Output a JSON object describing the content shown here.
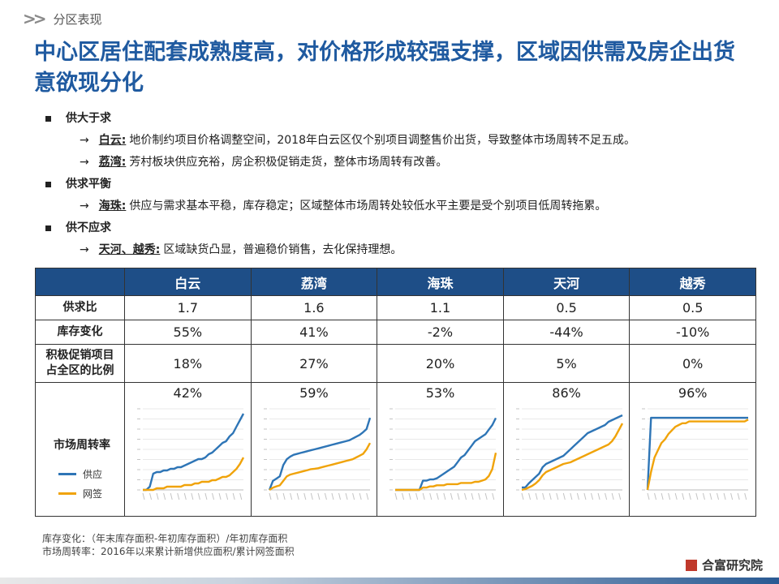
{
  "section": {
    "label": "分区表现"
  },
  "title": "中心区居住配套成熟度高，对价格形成较强支撑，区域因供需及房企出货意欲现分化",
  "bullets": [
    {
      "heading": "供大于求",
      "subs": [
        {
          "key": "白云:",
          "text": "地价制约项目价格调整空间，2018年白云区仅个别项目调整售价出货，导致整体市场周转不足五成。"
        },
        {
          "key": "荔湾:",
          "text": "芳村板块供应充裕，房企积极促销走货，整体市场周转有改善。"
        }
      ]
    },
    {
      "heading": "供求平衡",
      "subs": [
        {
          "key": "海珠:",
          "text": "供应与需求基本平稳，库存稳定；区域整体市场周转处较低水平主要是受个别项目低周转拖累。"
        }
      ]
    },
    {
      "heading": "供不应求",
      "subs": [
        {
          "key": "天河、越秀:",
          "text": "区域缺货凸显，普遍稳价销售，去化保持理想。"
        }
      ]
    }
  ],
  "table": {
    "columns": [
      "白云",
      "荔湾",
      "海珠",
      "天河",
      "越秀"
    ],
    "rows": [
      {
        "label": "供求比",
        "values": [
          "1.7",
          "1.6",
          "1.1",
          "0.5",
          "0.5"
        ]
      },
      {
        "label": "库存变化",
        "values": [
          "55%",
          "41%",
          "-2%",
          "-44%",
          "-10%"
        ]
      },
      {
        "label": "积极促销项目占全区的比例",
        "values": [
          "18%",
          "27%",
          "20%",
          "5%",
          "0%"
        ]
      }
    ],
    "turnover_label": "市场周转率",
    "turnover_values": [
      "42%",
      "59%",
      "53%",
      "86%",
      "96%"
    ],
    "legend": [
      {
        "name": "供应",
        "color": "#2e75b6"
      },
      {
        "name": "网签",
        "color": "#f0a30a"
      }
    ]
  },
  "chart_data": [
    {
      "type": "line",
      "district": "白云",
      "x_index": [
        0,
        1,
        2,
        3,
        4,
        5,
        6,
        7,
        8,
        9,
        10,
        11,
        12,
        13,
        14,
        15,
        16,
        17,
        18,
        19,
        20,
        21,
        22,
        23,
        24,
        25,
        26,
        27,
        28,
        29
      ],
      "series": [
        {
          "name": "供应",
          "values": [
            0,
            0,
            2,
            10,
            11,
            11,
            12,
            12,
            13,
            13,
            14,
            14,
            15,
            16,
            17,
            18,
            19,
            19,
            20,
            22,
            23,
            25,
            27,
            29,
            30,
            33,
            35,
            39,
            43,
            47
          ]
        },
        {
          "name": "网签",
          "values": [
            0,
            0,
            0,
            0,
            1,
            1,
            1,
            2,
            2,
            2,
            2,
            2,
            3,
            3,
            3,
            4,
            4,
            5,
            5,
            5,
            6,
            6,
            7,
            8,
            8,
            9,
            11,
            13,
            16,
            20
          ]
        }
      ],
      "ylim": [
        0,
        50
      ]
    },
    {
      "type": "line",
      "district": "荔湾",
      "x_index": [
        0,
        1,
        2,
        3,
        4,
        5,
        6,
        7,
        8,
        9,
        10,
        11,
        12,
        13,
        14,
        15,
        16,
        17,
        18,
        19,
        20,
        21,
        22,
        23,
        24,
        25,
        26,
        27,
        28,
        29
      ],
      "series": [
        {
          "name": "供应",
          "values": [
            0,
            20,
            25,
            30,
            55,
            68,
            74,
            78,
            80,
            82,
            84,
            86,
            88,
            90,
            92,
            94,
            96,
            98,
            100,
            102,
            104,
            106,
            108,
            110,
            114,
            118,
            122,
            128,
            135,
            160
          ]
        },
        {
          "name": "网签",
          "values": [
            0,
            5,
            8,
            10,
            20,
            30,
            34,
            36,
            38,
            40,
            42,
            44,
            46,
            47,
            48,
            50,
            52,
            54,
            56,
            58,
            60,
            62,
            64,
            66,
            68,
            72,
            76,
            80,
            90,
            104
          ]
        }
      ],
      "ylim": [
        0,
        180
      ]
    },
    {
      "type": "line",
      "district": "海珠",
      "x_index": [
        0,
        1,
        2,
        3,
        4,
        5,
        6,
        7,
        8,
        9,
        10,
        11,
        12,
        13,
        14,
        15,
        16,
        17,
        18,
        19,
        20,
        21,
        22,
        23,
        24,
        25,
        26,
        27,
        28,
        29
      ],
      "series": [
        {
          "name": "供应",
          "values": [
            0,
            0,
            0,
            0,
            0,
            0,
            0,
            0,
            8,
            8,
            9,
            9,
            10,
            12,
            14,
            16,
            18,
            20,
            24,
            28,
            30,
            34,
            38,
            42,
            44,
            46,
            48,
            52,
            56,
            62
          ]
        },
        {
          "name": "网签",
          "values": [
            0,
            0,
            0,
            0,
            0,
            0,
            0,
            0,
            2,
            2,
            3,
            3,
            4,
            4,
            4,
            5,
            5,
            5,
            5,
            6,
            6,
            6,
            6,
            7,
            7,
            8,
            9,
            12,
            18,
            32
          ]
        }
      ],
      "ylim": [
        0,
        70
      ]
    },
    {
      "type": "line",
      "district": "天河",
      "x_index": [
        0,
        1,
        2,
        3,
        4,
        5,
        6,
        7,
        8,
        9,
        10,
        11,
        12,
        13,
        14,
        15,
        16,
        17,
        18,
        19,
        20,
        21,
        22,
        23,
        24,
        25,
        26,
        27,
        28,
        29
      ],
      "series": [
        {
          "name": "供应",
          "values": [
            3,
            3,
            8,
            12,
            16,
            20,
            28,
            32,
            34,
            36,
            38,
            40,
            42,
            46,
            50,
            54,
            58,
            62,
            66,
            70,
            72,
            74,
            76,
            78,
            80,
            84,
            86,
            88,
            90,
            92
          ]
        },
        {
          "name": "网签",
          "values": [
            0,
            1,
            3,
            5,
            8,
            12,
            18,
            22,
            24,
            26,
            28,
            30,
            32,
            33,
            34,
            36,
            38,
            40,
            42,
            44,
            46,
            48,
            50,
            52,
            54,
            56,
            60,
            66,
            74,
            82
          ]
        }
      ],
      "ylim": [
        0,
        100
      ]
    },
    {
      "type": "line",
      "district": "越秀",
      "x_index": [
        0,
        1,
        2,
        3,
        4,
        5,
        6,
        7,
        8,
        9,
        10,
        11,
        12,
        13,
        14,
        15,
        16,
        17,
        18,
        19,
        20,
        21,
        22,
        23,
        24,
        25,
        26,
        27,
        28,
        29
      ],
      "series": [
        {
          "name": "供应",
          "values": [
            0,
            40,
            40,
            40,
            40,
            40,
            40,
            40,
            40,
            40,
            40,
            40,
            40,
            40,
            40,
            40,
            40,
            40,
            40,
            40,
            40,
            40,
            40,
            40,
            40,
            40,
            40,
            40,
            40,
            40
          ]
        },
        {
          "name": "网签",
          "values": [
            0,
            10,
            18,
            22,
            26,
            28,
            31,
            33,
            35,
            36,
            37,
            37,
            38,
            38,
            38,
            38,
            38,
            38,
            38,
            38,
            38,
            38,
            38,
            38,
            38,
            38,
            38,
            38,
            38,
            39
          ]
        }
      ],
      "ylim": [
        0,
        45
      ]
    }
  ],
  "notes": [
    "库存变化：（年末库存面积-年初库存面积）/年初库存面积",
    "市场周转率：2016年以来累计新增供应面积/累计网签面积"
  ],
  "logo": {
    "text": "合富研究院",
    "color": "#c0392b"
  }
}
